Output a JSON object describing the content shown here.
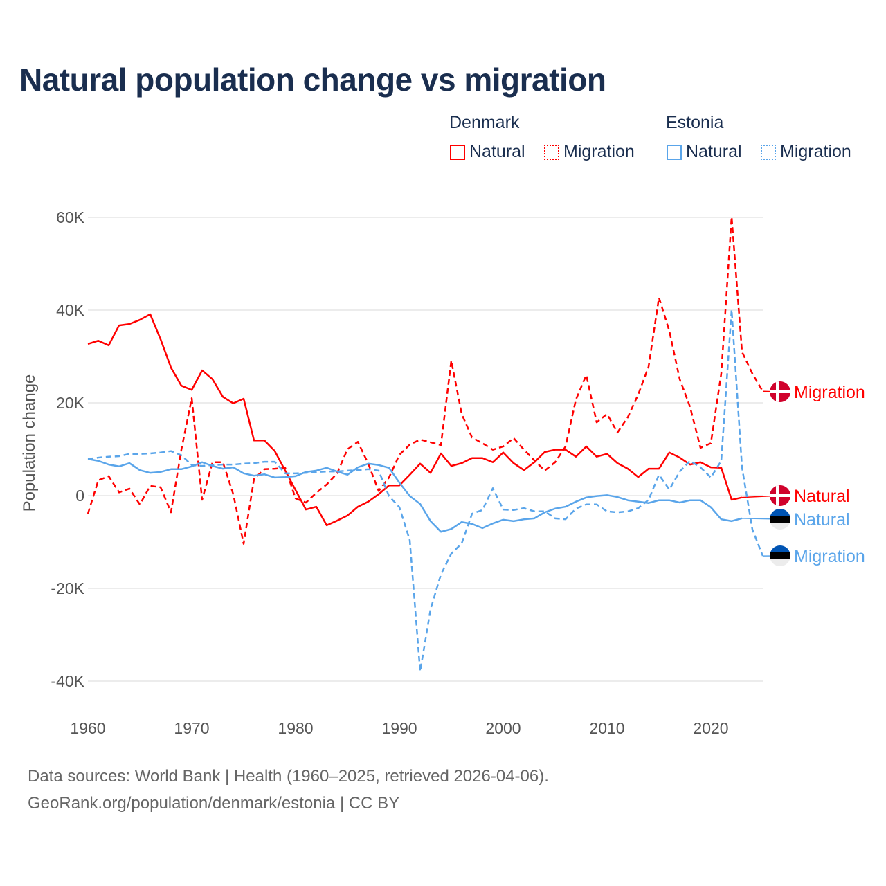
{
  "title": "Natural population change vs migration",
  "legend": {
    "groups": [
      {
        "name": "Denmark",
        "color": "#ff0000",
        "items": [
          "Natural",
          "Migration"
        ]
      },
      {
        "name": "Estonia",
        "color": "#5aa5ea",
        "items": [
          "Natural",
          "Migration"
        ]
      }
    ]
  },
  "footer": {
    "line1": "Data sources: World Bank | Health (1960–2025, retrieved 2026-04-06).",
    "line2": "GeoRank.org/population/denmark/estonia | CC BY"
  },
  "chart_data": {
    "type": "line",
    "title": "Natural population change vs migration",
    "xlabel": "",
    "ylabel": "Population change",
    "xlim": [
      1960,
      2025
    ],
    "ylim": [
      -40000,
      60000
    ],
    "x_ticks": [
      1960,
      1970,
      1980,
      1990,
      2000,
      2010,
      2020
    ],
    "x_tick_labels": [
      "1960",
      "1970",
      "1980",
      "1990",
      "2000",
      "2010",
      "2020"
    ],
    "y_ticks": [
      60000,
      40000,
      20000,
      0,
      -20000,
      -40000
    ],
    "y_tick_labels": [
      "60K",
      "40K",
      "20K",
      "0",
      "-20K",
      "-40K"
    ],
    "grid": true,
    "legend_placement": "top-right",
    "start_year": 1960,
    "series": [
      {
        "name": "Denmark Natural",
        "country": "Denmark",
        "kind": "Natural",
        "label": "Natural",
        "color": "#ff0000",
        "dashed": false,
        "flag": "denmark",
        "values": [
          32700,
          33400,
          32400,
          36700,
          37000,
          37900,
          39100,
          33700,
          27600,
          23700,
          22800,
          27000,
          25100,
          21300,
          19900,
          20900,
          11900,
          11900,
          9600,
          5400,
          1200,
          -3000,
          -2400,
          -6400,
          -5400,
          -4300,
          -2400,
          -1300,
          300,
          2200,
          2200,
          4500,
          6900,
          4900,
          9100,
          6400,
          7000,
          8100,
          8100,
          7200,
          9300,
          7000,
          5500,
          7200,
          9400,
          9900,
          9900,
          8400,
          10600,
          8400,
          9000,
          7000,
          5800,
          4000,
          5800,
          5800,
          9300,
          8200,
          6700,
          7200,
          6100,
          6000,
          -900,
          -400
        ]
      },
      {
        "name": "Denmark Migration",
        "country": "Denmark",
        "kind": "Migration",
        "label": "Migration",
        "color": "#ff0000",
        "dashed": true,
        "flag": "denmark",
        "values": [
          -3900,
          3300,
          4200,
          700,
          1500,
          -1900,
          2100,
          1800,
          -3600,
          9900,
          21000,
          -900,
          7200,
          7200,
          300,
          -10400,
          3600,
          5700,
          5800,
          6000,
          -600,
          -1500,
          600,
          2400,
          4800,
          10000,
          11600,
          6900,
          1000,
          3900,
          8800,
          11000,
          12100,
          11500,
          10900,
          29100,
          17600,
          12500,
          11300,
          9900,
          10600,
          12400,
          9900,
          7600,
          5400,
          7200,
          10600,
          20700,
          26000,
          15800,
          17600,
          13600,
          16900,
          21800,
          27800,
          42700,
          35500,
          25100,
          19100,
          10300,
          11300,
          26300,
          60100,
          31000,
          26300,
          22500
        ]
      },
      {
        "name": "Estonia Natural",
        "country": "Estonia",
        "kind": "Natural",
        "label": "Natural",
        "color": "#5aa5ea",
        "dashed": false,
        "flag": "estonia",
        "values": [
          7900,
          7500,
          6700,
          6300,
          7000,
          5500,
          4900,
          5100,
          5700,
          5700,
          6300,
          7200,
          6400,
          5800,
          6100,
          4800,
          4300,
          4600,
          3900,
          4000,
          4200,
          5100,
          5400,
          6000,
          5200,
          4500,
          6100,
          6900,
          6600,
          6000,
          2800,
          -100,
          -1800,
          -5500,
          -7800,
          -7200,
          -5700,
          -6100,
          -7000,
          -6000,
          -5200,
          -5500,
          -5100,
          -4900,
          -3600,
          -2800,
          -2400,
          -1300,
          -400,
          -100,
          100,
          -300,
          -1000,
          -1300,
          -1600,
          -1000,
          -1000,
          -1500,
          -1000,
          -1000,
          -2500,
          -5100,
          -5500,
          -4900
        ]
      },
      {
        "name": "Estonia Migration",
        "country": "Estonia",
        "kind": "Migration",
        "label": "Migration",
        "color": "#5aa5ea",
        "dashed": true,
        "flag": "estonia",
        "values": [
          7900,
          8200,
          8400,
          8500,
          9000,
          9000,
          9100,
          9300,
          9600,
          8700,
          6600,
          6400,
          6600,
          6700,
          6700,
          6900,
          7000,
          7300,
          7300,
          4800,
          4800,
          4900,
          5100,
          5200,
          5200,
          5400,
          5500,
          5700,
          5400,
          -100,
          -2500,
          -9600,
          -37900,
          -24500,
          -17000,
          -12500,
          -10300,
          -3900,
          -3100,
          1600,
          -3000,
          -3100,
          -2700,
          -3400,
          -3400,
          -4900,
          -5100,
          -2800,
          -1900,
          -1900,
          -3400,
          -3600,
          -3400,
          -2700,
          -900,
          4500,
          1300,
          5200,
          7500,
          6100,
          3900,
          7500,
          40100,
          6100,
          -7300,
          -13000
        ]
      }
    ]
  }
}
